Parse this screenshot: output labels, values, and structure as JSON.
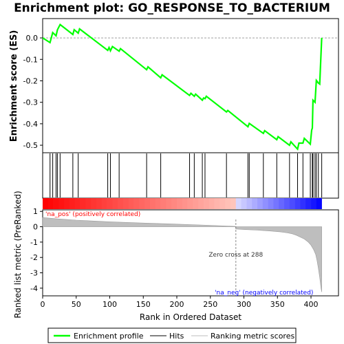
{
  "chart_data": {
    "type": "line",
    "title": "Enrichment plot: GO_RESPONSE_TO_BACTERIUM",
    "colors": {
      "es_line": "#00ff00",
      "hits": "#000000",
      "metric_fill": "#bebebe",
      "positive": "#ff0000",
      "negative": "#0000ff",
      "pos_label": "#ff0000",
      "neg_label": "#0000ff"
    },
    "top_panel": {
      "ylabel": "Enrichment score (ES)",
      "ylim": [
        -0.535,
        0.09
      ],
      "yticks": [
        0.0,
        -0.1,
        -0.2,
        -0.3,
        -0.4,
        -0.5
      ],
      "ytick_labels": [
        "0.0",
        "-0.1",
        "-0.2",
        "-0.3",
        "-0.4",
        "-0.5"
      ],
      "grid": false,
      "series": [
        {
          "name": "Enrichment profile",
          "x": [
            0,
            11,
            15,
            20,
            22,
            26,
            45,
            47,
            53,
            55,
            97,
            99,
            101,
            104,
            114,
            116,
            155,
            157,
            176,
            178,
            219,
            221,
            226,
            228,
            238,
            240,
            242,
            244,
            274,
            276,
            306,
            308,
            329,
            331,
            349,
            351,
            368,
            370,
            380,
            382,
            388,
            390,
            399,
            401,
            402,
            403,
            406,
            408,
            411,
            413,
            416
          ],
          "y": [
            0.0,
            -0.022,
            0.025,
            0.01,
            0.038,
            0.062,
            0.016,
            0.038,
            0.022,
            0.042,
            -0.058,
            -0.045,
            -0.06,
            -0.04,
            -0.062,
            -0.05,
            -0.148,
            -0.135,
            -0.186,
            -0.172,
            -0.268,
            -0.258,
            -0.272,
            -0.262,
            -0.29,
            -0.28,
            -0.283,
            -0.272,
            -0.345,
            -0.338,
            -0.414,
            -0.398,
            -0.445,
            -0.432,
            -0.474,
            -0.46,
            -0.5,
            -0.484,
            -0.518,
            -0.49,
            -0.49,
            -0.468,
            -0.495,
            -0.43,
            -0.42,
            -0.29,
            -0.3,
            -0.198,
            -0.21,
            -0.215,
            0.0
          ]
        }
      ]
    },
    "hits_panel": {
      "hit_ranks": [
        11,
        15,
        20,
        22,
        26,
        45,
        53,
        97,
        101,
        114,
        155,
        176,
        219,
        226,
        238,
        242,
        274,
        306,
        308,
        329,
        349,
        368,
        380,
        388,
        399,
        402,
        403,
        406,
        408,
        411,
        416
      ]
    },
    "bottom_panel": {
      "ylabel": "Ranked list metric (PreRanked)",
      "xlabel": "Rank in Ordered Dataset",
      "xlim": [
        0,
        441
      ],
      "xticks": [
        0,
        50,
        100,
        150,
        200,
        250,
        300,
        350,
        400
      ],
      "ylim": [
        -4.5,
        1.1
      ],
      "yticks": [
        1,
        0,
        -1,
        -2,
        -3,
        -4
      ],
      "zero_cross": 288,
      "zero_cross_label": "Zero cross at 288",
      "pos_label": "'na_pos' (positively correlated)",
      "neg_label": "'na_neg' (negatively correlated)",
      "metric_curve": {
        "x": [
          0,
          20,
          50,
          100,
          150,
          200,
          250,
          287,
          288,
          300,
          320,
          340,
          355,
          365,
          372,
          378,
          383,
          390,
          396,
          400,
          404,
          407,
          409,
          411,
          413,
          415,
          416
        ],
        "y": [
          0.6,
          0.52,
          0.43,
          0.32,
          0.24,
          0.17,
          0.09,
          0.02,
          -0.15,
          -0.18,
          -0.22,
          -0.28,
          -0.34,
          -0.4,
          -0.46,
          -0.55,
          -0.65,
          -0.8,
          -1.0,
          -1.2,
          -1.5,
          -1.8,
          -2.2,
          -2.7,
          -3.3,
          -4.0,
          -4.25
        ]
      }
    },
    "legend": {
      "items": [
        "Enrichment profile",
        "Hits",
        "Ranking metric scores"
      ],
      "placement": "bottom"
    }
  }
}
